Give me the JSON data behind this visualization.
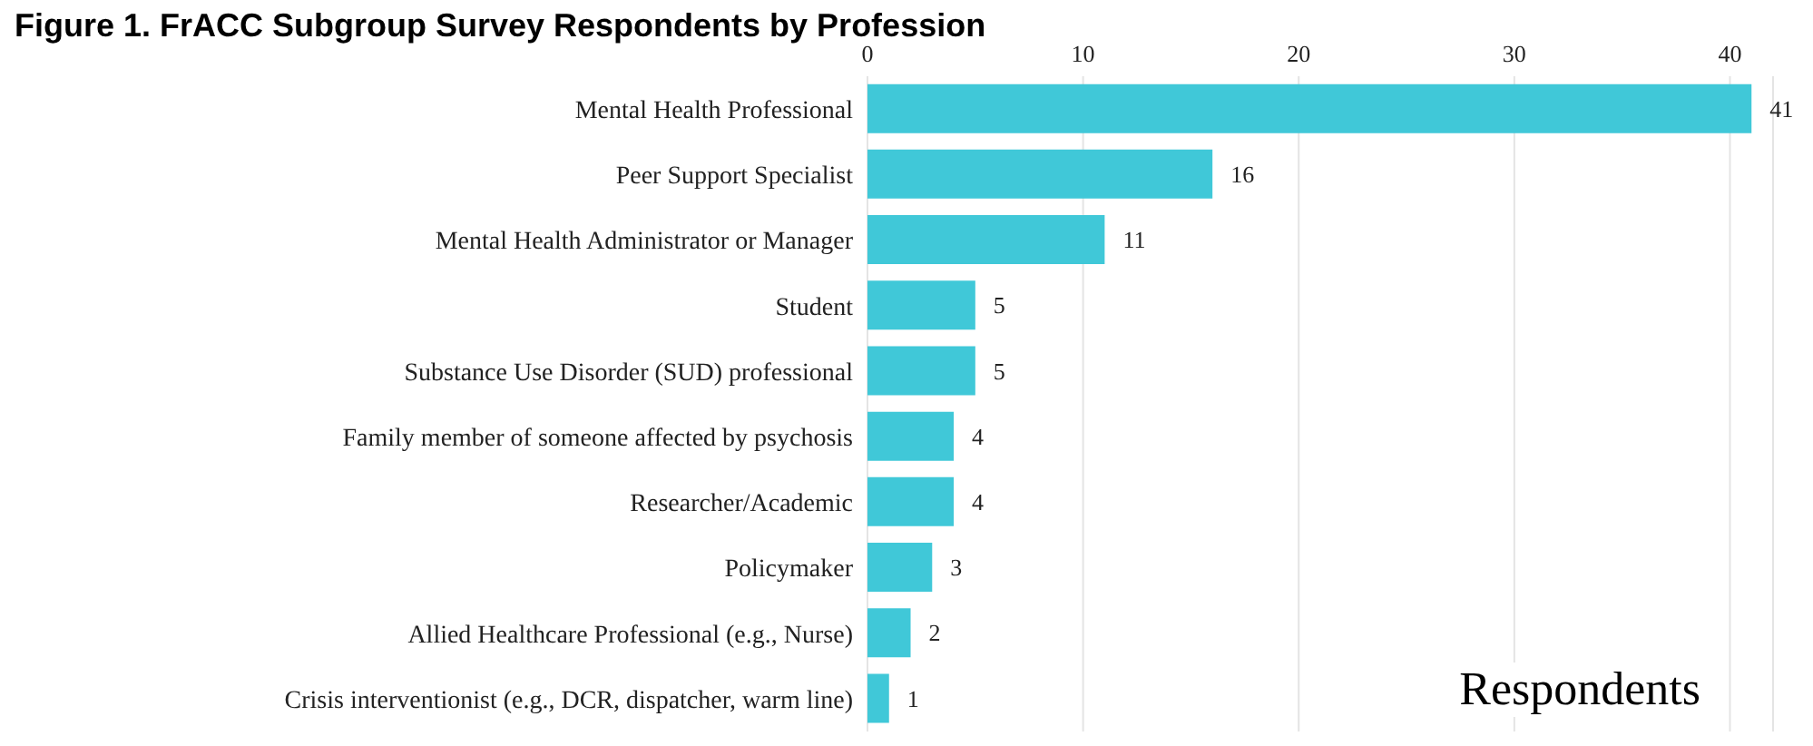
{
  "chart_data": {
    "type": "bar",
    "orientation": "horizontal",
    "title": "Figure 1. FrACC Subgroup Survey Respondents by Profession",
    "xlabel": "Respondents",
    "categories": [
      "Mental Health Professional",
      "Peer Support Specialist",
      "Mental Health Administrator or Manager",
      "Student",
      "Substance Use Disorder (SUD) professional",
      "Family member of someone affected by psychosis",
      "Researcher/Academic",
      "Policymaker",
      "Allied Healthcare Professional (e.g., Nurse)",
      "Crisis interventionist (e.g., DCR, dispatcher, warm line)"
    ],
    "values": [
      41,
      16,
      11,
      5,
      5,
      4,
      4,
      3,
      2,
      1
    ],
    "color": "#40c8d8",
    "xlim": [
      0,
      42
    ],
    "xticks": [
      0,
      10,
      20,
      30,
      40
    ],
    "grid": "x",
    "data_labels": true
  }
}
